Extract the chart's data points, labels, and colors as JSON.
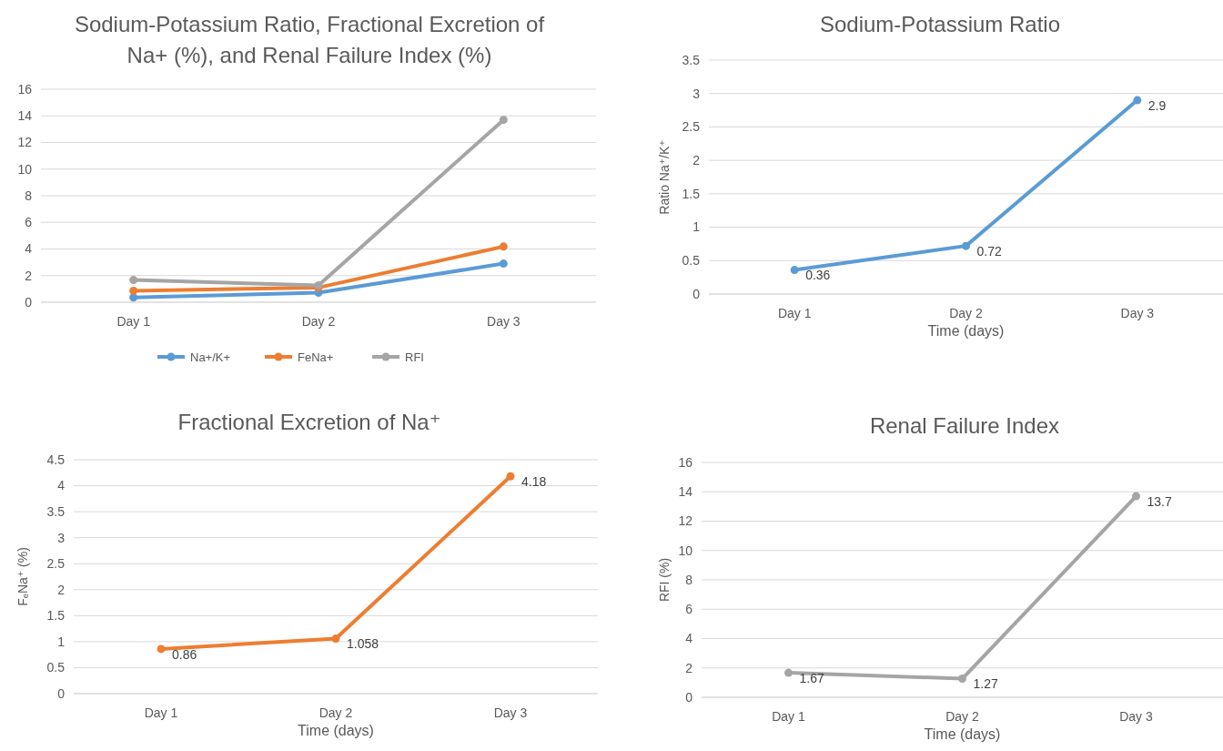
{
  "chart_data": [
    {
      "type": "line",
      "title": "Sodium-Potassium Ratio, Fractional Excretion of Na+ (%), and Renal Failure Index (%)",
      "categories": [
        "Day 1",
        "Day 2",
        "Day 3"
      ],
      "series": [
        {
          "name": "Na+/K+",
          "color": "#5b9bd5",
          "values": [
            0.36,
            0.72,
            2.9
          ]
        },
        {
          "name": "FeNa+",
          "color": "#ed7d31",
          "values": [
            0.86,
            1.1,
            4.18
          ]
        },
        {
          "name": "RFI",
          "color": "#a5a5a5",
          "values": [
            1.67,
            1.27,
            13.7
          ]
        }
      ],
      "ylim": [
        0,
        16
      ],
      "yticks": [
        0,
        2,
        4,
        6,
        8,
        10,
        12,
        14,
        16
      ],
      "grid": "y",
      "marker": "circle",
      "legend": "bottom"
    },
    {
      "type": "line",
      "title": "Sodium-Potassium Ratio",
      "xlabel": "Time (days)",
      "ylabel": "Ratio Na⁺/K⁺",
      "categories": [
        "Day 1",
        "Day 2",
        "Day 3"
      ],
      "series": [
        {
          "color": "#5b9bd5",
          "values": [
            0.36,
            0.72,
            2.9
          ]
        }
      ],
      "ylim": [
        0,
        3.5
      ],
      "yticks": [
        0,
        0.5,
        1,
        1.5,
        2,
        2.5,
        3,
        3.5
      ],
      "grid": "y",
      "marker": "circle",
      "data_labels": true
    },
    {
      "type": "line",
      "title": "Fractional Excretion of Na⁺",
      "xlabel": "Time (days)",
      "ylabel": "FₑNa⁺ (%)",
      "categories": [
        "Day 1",
        "Day 2",
        "Day 3"
      ],
      "series": [
        {
          "color": "#ed7d31",
          "values": [
            0.86,
            1.058,
            4.18
          ]
        }
      ],
      "ylim": [
        0,
        4.5
      ],
      "yticks": [
        0,
        0.5,
        1,
        1.5,
        2,
        2.5,
        3,
        3.5,
        4,
        4.5
      ],
      "grid": "y",
      "marker": "circle",
      "data_labels": true
    },
    {
      "type": "line",
      "title": "Renal Failure Index",
      "xlabel": "Time (days)",
      "ylabel": "RFI (%)",
      "categories": [
        "Day 1",
        "Day 2",
        "Day 3"
      ],
      "series": [
        {
          "color": "#a5a5a5",
          "values": [
            1.67,
            1.27,
            13.7
          ]
        }
      ],
      "ylim": [
        0,
        16
      ],
      "yticks": [
        0,
        2,
        4,
        6,
        8,
        10,
        12,
        14,
        16
      ],
      "grid": "y",
      "marker": "circle",
      "data_labels": true
    }
  ]
}
